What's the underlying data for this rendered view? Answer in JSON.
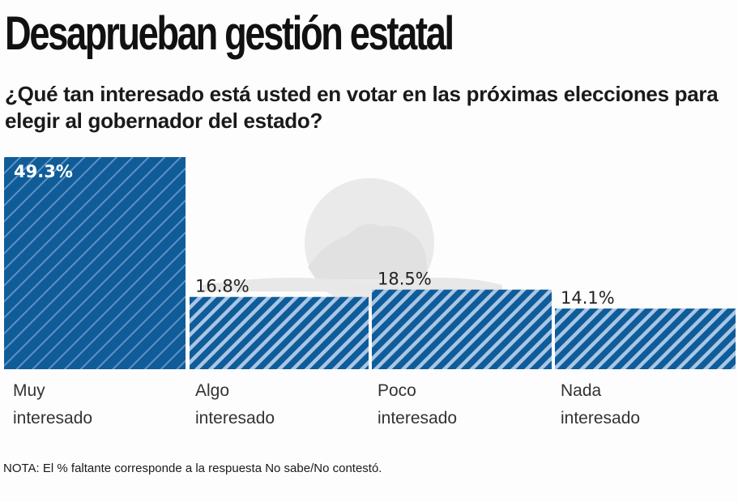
{
  "header": {
    "title": "Desaprueban gestión estatal",
    "subtitle": "¿Qué tan interesado está usted en votar en las próximas elecciones para elegir al gobernador del estado?"
  },
  "note": "NOTA: El % faltante corresponde a la respuesta No sabe/No contestó.",
  "colors": {
    "bar_fill": "#0f5c99",
    "stripe": "#a8c6e6",
    "first_bar_stripe": "#5f92c4",
    "watermark": "#e6e6e6"
  },
  "categories_display": [
    {
      "line1": "Muy",
      "line2": "interesado"
    },
    {
      "line1": "Algo",
      "line2": "interesado"
    },
    {
      "line1": "Poco",
      "line2": "interesado"
    },
    {
      "line1": "Nada",
      "line2": "interesado"
    }
  ],
  "chart_data": {
    "type": "bar",
    "title": "Desaprueban gestión estatal",
    "subtitle": "¿Qué tan interesado está usted en votar en las próximas elecciones para elegir al gobernador del estado?",
    "categories": [
      "Muy interesado",
      "Algo interesado",
      "Poco interesado",
      "Nada interesado"
    ],
    "values": [
      49.3,
      16.8,
      18.5,
      14.1
    ],
    "data_labels": [
      "49.3%",
      "16.8%",
      "18.5%",
      "14.1%"
    ],
    "xlabel": "",
    "ylabel": "",
    "ylim": [
      0,
      49.3
    ],
    "grid": false,
    "legend": "none"
  }
}
